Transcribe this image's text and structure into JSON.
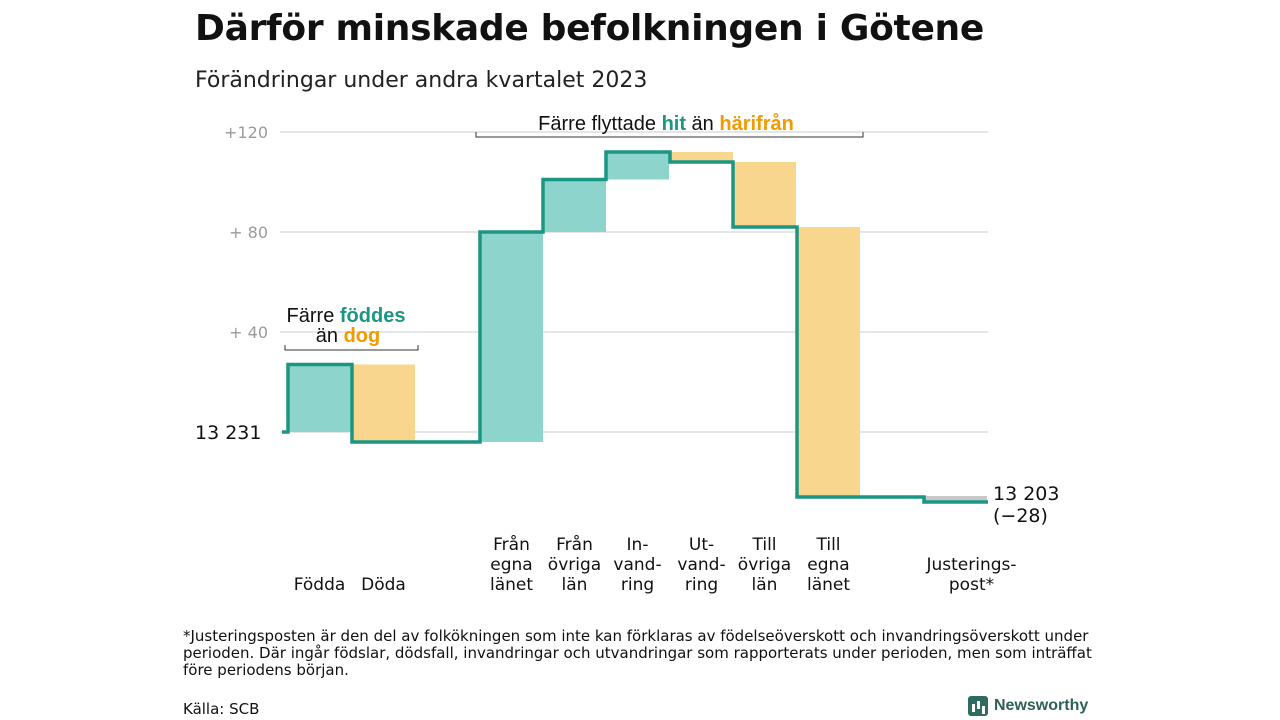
{
  "title": "Därför minskade befolkningen i Götene",
  "subtitle": "Förändringar under andra kvartalet 2023",
  "colors": {
    "line": "#1a9683",
    "increase": "#8dd5cc",
    "decrease": "#f9d68e",
    "adjustment": "#c8c8c8",
    "grid": "#dddddd",
    "tick_text": "#9a9a9a",
    "hit": "#1a9683",
    "harifran": "#f29a00"
  },
  "chart_data": {
    "type": "waterfall",
    "start_label": "13  231",
    "start_value": 13231,
    "end_label": "13 203",
    "end_change_label": "(−28)",
    "end_value": 13203,
    "y_ticks": [
      {
        "value": 40,
        "label": "+  40"
      },
      {
        "value": 80,
        "label": "+  80"
      },
      {
        "value": 120,
        "label": "+120"
      }
    ],
    "ylim": [
      -30,
      125
    ],
    "grid": true,
    "steps": [
      {
        "label_lines": [
          "Födda"
        ],
        "delta": 27,
        "kind": "increase"
      },
      {
        "label_lines": [
          "Döda"
        ],
        "delta": -31,
        "kind": "decrease"
      },
      {
        "label_lines": [
          "Från",
          "egna",
          "länet"
        ],
        "delta": 84,
        "kind": "increase"
      },
      {
        "label_lines": [
          "Från",
          "övriga",
          "län"
        ],
        "delta": 21,
        "kind": "increase"
      },
      {
        "label_lines": [
          "In-",
          "vand-",
          "ring"
        ],
        "delta": 11,
        "kind": "increase"
      },
      {
        "label_lines": [
          "Ut-",
          "vand-",
          "ring"
        ],
        "delta": -4,
        "kind": "decrease"
      },
      {
        "label_lines": [
          "Till",
          "övriga",
          "län"
        ],
        "delta": -26,
        "kind": "decrease"
      },
      {
        "label_lines": [
          "Till",
          "egna",
          "länet"
        ],
        "delta": -108,
        "kind": "decrease"
      },
      {
        "label_lines": [
          "Justerings-",
          "post*"
        ],
        "delta": -2,
        "kind": "adjustment"
      }
    ],
    "annotations": [
      {
        "parts": [
          {
            "text": "Färre ",
            "style": "plain"
          },
          {
            "text": "föddes",
            "style": "hit"
          }
        ],
        "parts2": [
          {
            "text": "än ",
            "style": "plain"
          },
          {
            "text": "dog",
            "style": "harifran"
          }
        ]
      },
      {
        "parts": [
          {
            "text": "Färre flyttade ",
            "style": "plain"
          },
          {
            "text": "hit",
            "style": "hit"
          },
          {
            "text": " än ",
            "style": "plain"
          },
          {
            "text": "härifrån",
            "style": "harifran"
          }
        ]
      }
    ]
  },
  "footnote": "*Justeringsposten är den del av folkökningen som inte kan förklaras av födelseöverskott och invandringsöverskott under perioden. Där ingår födslar, dödsfall, invandringar och utvandringar som rapporterats under perioden, men som inträffat före periodens början.",
  "source": "Källa: SCB",
  "logo": {
    "text": "Newsworthy",
    "icon": "bar-chart-icon"
  }
}
